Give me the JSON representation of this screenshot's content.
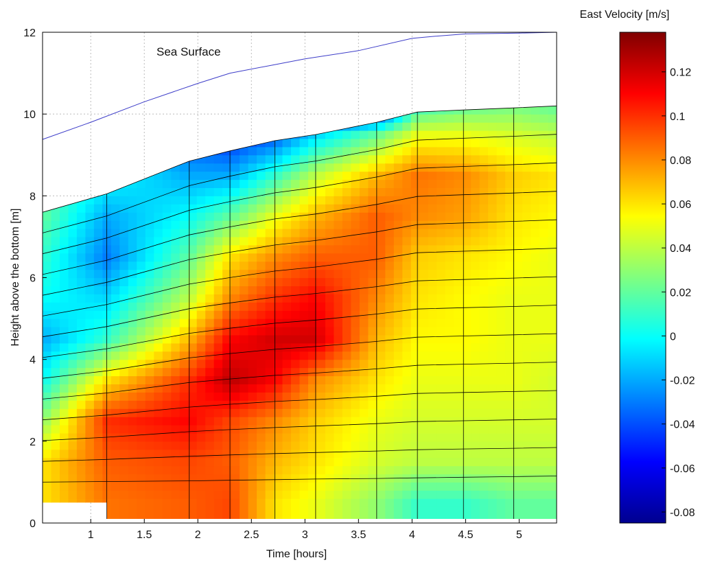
{
  "chart_data": {
    "type": "heatmap",
    "title": "",
    "xlabel": "Time [hours]",
    "ylabel": "Height above the bottom [m]",
    "xlim": [
      0.55,
      5.35
    ],
    "ylim": [
      0,
      12
    ],
    "xticks": [
      "1",
      "1.5",
      "2",
      "2.5",
      "3",
      "3.5",
      "4",
      "4.5",
      "5"
    ],
    "yticks": [
      "0",
      "2",
      "4",
      "6",
      "8",
      "10",
      "12"
    ],
    "grid": true,
    "annotation": "Sea Surface",
    "colorbar": {
      "label": "East Velocity [m/s]",
      "range": [
        -0.085,
        0.138
      ],
      "ticks": [
        "0.12",
        "0.1",
        "0.08",
        "0.06",
        "0.04",
        "0.02",
        "0",
        "-0.02",
        "-0.04",
        "-0.06",
        "-0.08"
      ],
      "colormap": [
        "#00008f",
        "#0000ff",
        "#00ffff",
        "#ffff00",
        "#ff0000",
        "#800000"
      ]
    },
    "sea_surface": {
      "x": [
        0.55,
        1.0,
        1.5,
        2.0,
        2.3,
        2.7,
        3.0,
        3.5,
        4.0,
        4.2,
        4.5,
        5.0,
        5.35
      ],
      "y": [
        9.38,
        9.8,
        10.3,
        10.75,
        11.0,
        11.2,
        11.35,
        11.55,
        11.85,
        11.9,
        11.96,
        11.98,
        12.0
      ]
    },
    "bottom_sensor_x": [
      0.55,
      1.15,
      1.92,
      2.3,
      2.72,
      3.1,
      3.67,
      4.05,
      4.48,
      4.95,
      5.35
    ],
    "top_bin_height": [
      7.6,
      8.05,
      8.85,
      9.1,
      9.35,
      9.5,
      9.8,
      10.05,
      10.1,
      10.15,
      10.2
    ],
    "velocity_grid_heights": [
      0.5,
      1.5,
      2.5,
      3.5,
      4.5,
      5.5,
      6.5,
      7.5,
      8.5,
      9.5,
      10.2
    ],
    "velocity_grid_times": [
      0.55,
      1.15,
      1.92,
      2.3,
      2.72,
      3.1,
      3.67,
      4.05,
      4.48,
      4.95,
      5.35
    ],
    "velocity": [
      [
        0.06,
        0.085,
        0.09,
        0.095,
        0.06,
        0.05,
        0.03,
        0.01,
        0.01,
        0.02,
        0.02
      ],
      [
        0.06,
        0.09,
        0.095,
        0.09,
        0.07,
        0.06,
        0.045,
        0.04,
        0.04,
        0.04,
        0.04
      ],
      [
        0.03,
        0.1,
        0.11,
        0.095,
        0.08,
        0.065,
        0.05,
        0.045,
        0.045,
        0.045,
        0.045
      ],
      [
        0.0,
        0.06,
        0.1,
        0.125,
        0.11,
        0.08,
        0.06,
        0.05,
        0.05,
        0.05,
        0.045
      ],
      [
        -0.02,
        0.01,
        0.07,
        0.11,
        0.12,
        0.12,
        0.07,
        0.055,
        0.055,
        0.05,
        0.05
      ],
      [
        0.0,
        -0.01,
        0.04,
        0.08,
        0.1,
        0.11,
        0.08,
        0.06,
        0.055,
        0.05,
        0.05
      ],
      [
        0.01,
        -0.03,
        0.02,
        0.06,
        0.08,
        0.09,
        0.09,
        0.065,
        0.06,
        0.055,
        0.05
      ],
      [
        0.02,
        -0.02,
        0.0,
        0.02,
        0.05,
        0.07,
        0.09,
        0.08,
        0.075,
        0.06,
        0.055
      ],
      [
        0.02,
        0.0,
        -0.02,
        -0.02,
        0.01,
        0.04,
        0.07,
        0.085,
        0.08,
        0.065,
        0.06
      ],
      [
        0.02,
        0.0,
        -0.04,
        -0.05,
        -0.04,
        -0.01,
        0.02,
        0.05,
        0.05,
        0.045,
        0.04
      ],
      [
        0.02,
        0.0,
        -0.05,
        -0.06,
        -0.07,
        -0.08,
        -0.07,
        0.01,
        0.02,
        0.025,
        0.02
      ]
    ]
  }
}
